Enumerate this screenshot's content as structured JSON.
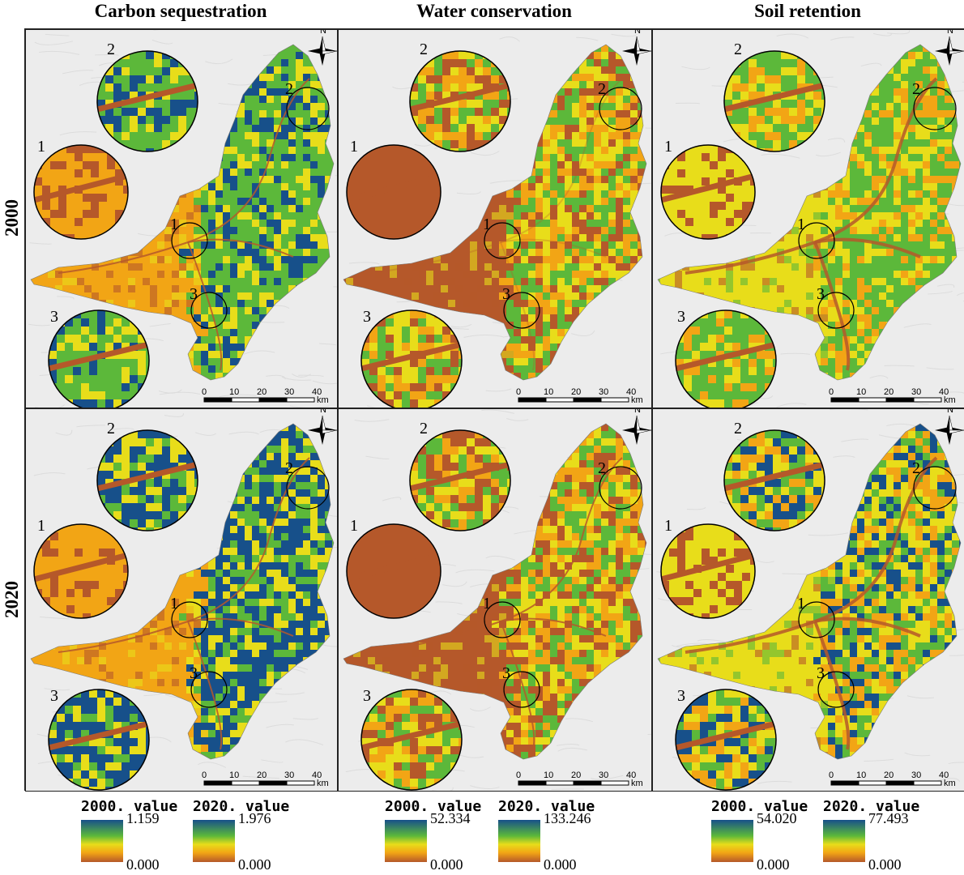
{
  "columns": [
    {
      "title": "Carbon sequestration"
    },
    {
      "title": "Water conservation"
    },
    {
      "title": "Soil retention"
    }
  ],
  "rows": [
    {
      "label": "2000"
    },
    {
      "label": "2020"
    }
  ],
  "callouts": [
    "1",
    "2",
    "3"
  ],
  "north_label": "N",
  "scale_bar": {
    "ticks": [
      "0",
      "10",
      "20",
      "30",
      "40"
    ],
    "unit": "km"
  },
  "legends": [
    [
      {
        "title": "2000. value",
        "max": "1.159",
        "min": "0.000"
      },
      {
        "title": "2020. value",
        "max": "1.976",
        "min": "0.000"
      }
    ],
    [
      {
        "title": "2000. value",
        "max": "52.334",
        "min": "0.000"
      },
      {
        "title": "2020. value",
        "max": "133.246",
        "min": "0.000"
      }
    ],
    [
      {
        "title": "2000. value",
        "max": "54.020",
        "min": "0.000"
      },
      {
        "title": "2020. value",
        "max": "77.493",
        "min": "0.000"
      }
    ]
  ],
  "colors": {
    "low": "#b5582a",
    "mid_low": "#f2a515",
    "mid": "#e8dd1a",
    "mid_high": "#5cb83a",
    "high": "#17508a",
    "hillshade": "#ececec"
  }
}
